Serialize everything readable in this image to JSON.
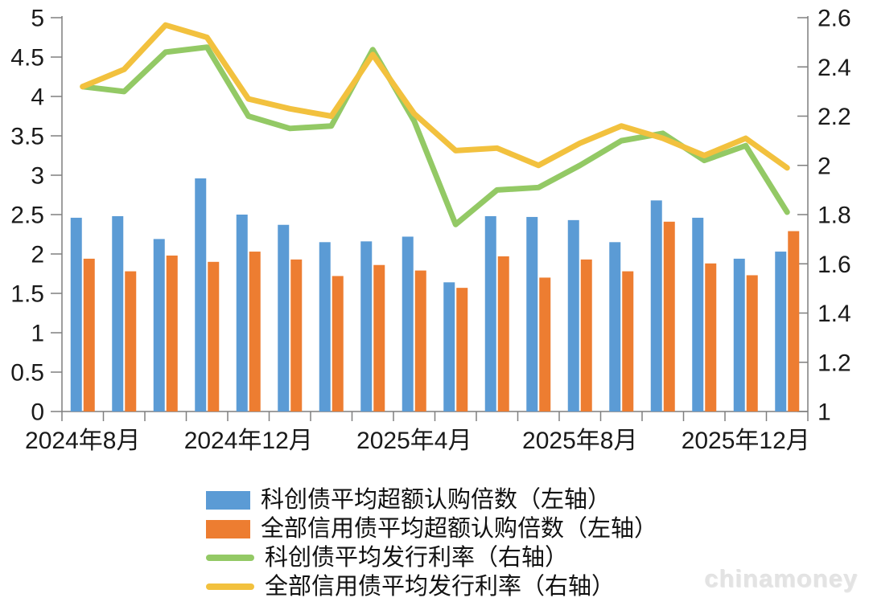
{
  "watermark": {
    "text": "chinamoney"
  },
  "chart_data": {
    "type": "combo-bar-line",
    "grid": false,
    "legend_position": "bottom",
    "categories": [
      "2024年8月",
      "2024年9月",
      "2024年10月",
      "2024年11月",
      "2024年12月",
      "2025年1月",
      "2025年2月",
      "2025年3月",
      "2025年4月",
      "2025年5月",
      "2025年6月",
      "2025年7月",
      "2025年8月",
      "2025年9月",
      "2025年10月",
      "2025年11月",
      "2025年12月",
      "2026年1月"
    ],
    "x_axis": {
      "ticks": [
        {
          "index": 0,
          "label": "2024年8月"
        },
        {
          "index": 4,
          "label": "2024年12月"
        },
        {
          "index": 8,
          "label": "2025年4月"
        },
        {
          "index": 12,
          "label": "2025年8月"
        },
        {
          "index": 16,
          "label": "2025年12月"
        }
      ]
    },
    "left_axis": {
      "min": 0,
      "max": 5,
      "tick_labels": [
        "0",
        "0.5",
        "1",
        "1.5",
        "2",
        "2.5",
        "3",
        "3.5",
        "4",
        "4.5",
        "5"
      ]
    },
    "right_axis": {
      "min": 1,
      "max": 2.6,
      "tick_labels": [
        "1",
        "1.2",
        "1.4",
        "1.6",
        "1.8",
        "2",
        "2.2",
        "2.4",
        "2.6"
      ]
    },
    "bar_series": [
      {
        "name": "科创债平均超额认购倍数（左轴）",
        "axis": "left",
        "color": "#5B9BD5",
        "values": [
          2.46,
          2.48,
          2.19,
          2.96,
          2.5,
          2.37,
          2.15,
          2.16,
          2.22,
          1.64,
          2.48,
          2.47,
          2.43,
          2.15,
          2.68,
          2.46,
          1.94,
          2.03
        ]
      },
      {
        "name": "全部信用债平均超额认购倍数（左轴）",
        "axis": "left",
        "color": "#ED7D31",
        "values": [
          1.94,
          1.78,
          1.98,
          1.9,
          2.03,
          1.93,
          1.72,
          1.86,
          1.79,
          1.57,
          1.97,
          1.7,
          1.93,
          1.78,
          2.41,
          1.88,
          1.73,
          2.29
        ]
      }
    ],
    "line_series": [
      {
        "name": "科创债平均发行利率（右轴）",
        "axis": "right",
        "color": "#93C965",
        "values": [
          2.32,
          2.3,
          2.46,
          2.48,
          2.2,
          2.15,
          2.16,
          2.47,
          2.18,
          1.76,
          1.9,
          1.91,
          2.0,
          2.1,
          2.13,
          2.02,
          2.08,
          1.81
        ]
      },
      {
        "name": "全部信用债平均发行利率（右轴）",
        "axis": "right",
        "color": "#F2C13E",
        "values": [
          2.32,
          2.39,
          2.57,
          2.52,
          2.27,
          2.23,
          2.2,
          2.45,
          2.21,
          2.06,
          2.07,
          2.0,
          2.09,
          2.16,
          2.11,
          2.04,
          2.11,
          1.99
        ]
      }
    ],
    "axis_color": "#7f7f7f"
  }
}
